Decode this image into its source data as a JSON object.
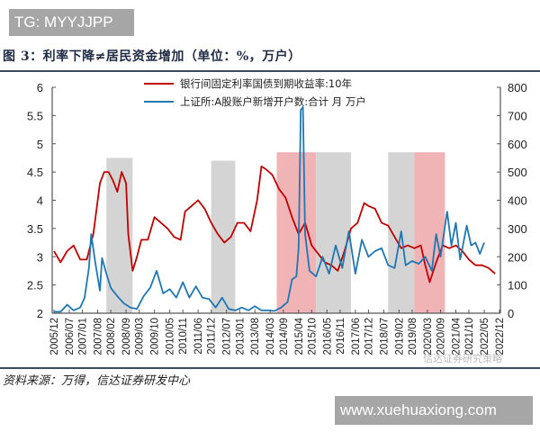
{
  "watermark_top": "TG: MYYJJPP",
  "watermark_bottom": "www.xuehuaxiong.com",
  "watermark_chart": "信达证券研究策略",
  "title": "图 3：利率下降≠居民资金增加（单位：%，万户）",
  "source": "资料来源：万得，信达证券研发中心",
  "chart_data": {
    "type": "line",
    "title": "图 3：利率下降≠居民资金增加（单位：%，万户）",
    "xlabel": "",
    "ylabel_left": "%",
    "ylabel_right": "万户",
    "ylim_left": [
      2,
      6
    ],
    "ylim_right": [
      0,
      800
    ],
    "yticks_left": [
      "2",
      "2.5",
      "3",
      "3.5",
      "4",
      "4.5",
      "5",
      "5.5",
      "6"
    ],
    "yticks_right": [
      "0",
      "100",
      "200",
      "300",
      "400",
      "500",
      "600",
      "700",
      "800"
    ],
    "x_tick_labels": [
      "2005/12",
      "2006/07",
      "2007/01",
      "2007/08",
      "2008/02",
      "2008/09",
      "2009/03",
      "2009/10",
      "2010/05",
      "2010/11",
      "2011/06",
      "2011/12",
      "2012/07",
      "2013/01",
      "2013/08",
      "2014/03",
      "2014/09",
      "2015/04",
      "2015/10",
      "2016/05",
      "2016/11",
      "2017/06",
      "2017/12",
      "2018/07",
      "2019/02",
      "2019/08",
      "2020/03",
      "2020/09",
      "2021/04",
      "2021/10",
      "2022/05",
      "2022/12"
    ],
    "grid": false,
    "legend_position": "top-center",
    "shaded_periods": [
      {
        "color": "gray",
        "start": "2007/12",
        "end": "2008/12",
        "top_left_value": 4.75
      },
      {
        "color": "gray",
        "start": "2011/12",
        "end": "2012/11",
        "top_left_value": 4.7
      },
      {
        "color": "pink",
        "start": "2014/06",
        "end": "2015/12",
        "top_left_value": 4.85
      },
      {
        "color": "gray",
        "start": "2015/12",
        "end": "2017/04",
        "top_left_value": 4.85
      },
      {
        "color": "gray",
        "start": "2018/09",
        "end": "2019/09",
        "top_left_value": 4.85
      },
      {
        "color": "pink",
        "start": "2019/09",
        "end": "2020/11",
        "top_left_value": 4.85
      }
    ],
    "series": [
      {
        "name": "银行间固定利率国债到期收益率:10年",
        "axis": "left",
        "color": "#c00000",
        "x": [
          "2005/12",
          "2006/03",
          "2006/06",
          "2006/09",
          "2006/12",
          "2007/03",
          "2007/06",
          "2007/09",
          "2007/11",
          "2008/01",
          "2008/03",
          "2008/05",
          "2008/07",
          "2008/09",
          "2008/10",
          "2008/12",
          "2009/02",
          "2009/04",
          "2009/07",
          "2009/10",
          "2010/01",
          "2010/04",
          "2010/07",
          "2010/10",
          "2010/12",
          "2011/03",
          "2011/06",
          "2011/09",
          "2011/12",
          "2012/03",
          "2012/06",
          "2012/09",
          "2012/12",
          "2013/03",
          "2013/06",
          "2013/09",
          "2013/11",
          "2014/01",
          "2014/04",
          "2014/07",
          "2014/10",
          "2015/01",
          "2015/04",
          "2015/07",
          "2015/10",
          "2016/01",
          "2016/04",
          "2016/07",
          "2016/10",
          "2017/01",
          "2017/04",
          "2017/07",
          "2017/10",
          "2017/12",
          "2018/03",
          "2018/06",
          "2018/09",
          "2018/12",
          "2019/03",
          "2019/06",
          "2019/09",
          "2019/12",
          "2020/02",
          "2020/04",
          "2020/07",
          "2020/10",
          "2021/01",
          "2021/04",
          "2021/07",
          "2021/10",
          "2022/01",
          "2022/04",
          "2022/07",
          "2022/10"
        ],
        "values": [
          3.1,
          2.9,
          3.1,
          3.2,
          2.95,
          2.95,
          3.4,
          4.3,
          4.5,
          4.5,
          4.35,
          4.15,
          4.5,
          4.3,
          3.4,
          2.75,
          3.0,
          3.3,
          3.3,
          3.7,
          3.6,
          3.5,
          3.35,
          3.3,
          3.8,
          3.9,
          4.0,
          3.85,
          3.6,
          3.4,
          3.25,
          3.35,
          3.6,
          3.6,
          3.45,
          4.0,
          4.6,
          4.55,
          4.45,
          4.2,
          4.05,
          3.7,
          3.4,
          3.6,
          3.2,
          3.05,
          2.9,
          2.85,
          2.75,
          3.1,
          3.5,
          3.6,
          3.95,
          3.9,
          3.85,
          3.6,
          3.55,
          3.35,
          3.15,
          3.2,
          3.15,
          3.2,
          2.85,
          2.55,
          2.9,
          3.2,
          3.15,
          3.2,
          3.1,
          2.95,
          2.85,
          2.85,
          2.8,
          2.7
        ]
      },
      {
        "name": "上证所:A股账户新增开户数:合计 月 万户",
        "axis": "right",
        "color": "#1f77b4",
        "x": [
          "2005/12",
          "2006/03",
          "2006/06",
          "2006/09",
          "2006/12",
          "2007/02",
          "2007/04",
          "2007/05",
          "2007/07",
          "2007/09",
          "2007/10",
          "2007/12",
          "2008/02",
          "2008/05",
          "2008/08",
          "2008/11",
          "2009/02",
          "2009/05",
          "2009/08",
          "2009/11",
          "2010/02",
          "2010/05",
          "2010/08",
          "2010/11",
          "2011/02",
          "2011/05",
          "2011/08",
          "2011/11",
          "2012/02",
          "2012/05",
          "2012/08",
          "2012/11",
          "2013/02",
          "2013/05",
          "2013/08",
          "2013/11",
          "2014/02",
          "2014/05",
          "2014/08",
          "2014/11",
          "2015/01",
          "2015/03",
          "2015/04",
          "2015/05",
          "2015/06",
          "2015/07",
          "2015/09",
          "2015/12",
          "2016/03",
          "2016/06",
          "2016/09",
          "2016/12",
          "2017/03",
          "2017/06",
          "2017/09",
          "2017/12",
          "2018/03",
          "2018/06",
          "2018/09",
          "2018/12",
          "2019/03",
          "2019/05",
          "2019/08",
          "2019/11",
          "2020/02",
          "2020/05",
          "2020/07",
          "2020/09",
          "2020/12",
          "2021/02",
          "2021/04",
          "2021/06",
          "2021/09",
          "2021/11",
          "2022/01",
          "2022/03",
          "2022/05"
        ],
        "values": [
          5,
          5,
          30,
          10,
          20,
          55,
          160,
          280,
          175,
          80,
          195,
          140,
          90,
          60,
          35,
          20,
          15,
          60,
          90,
          150,
          70,
          85,
          55,
          110,
          55,
          95,
          55,
          50,
          20,
          55,
          15,
          10,
          20,
          10,
          25,
          10,
          10,
          8,
          20,
          40,
          120,
          130,
          230,
          720,
          730,
          280,
          150,
          130,
          200,
          140,
          240,
          160,
          290,
          140,
          260,
          200,
          220,
          230,
          170,
          160,
          290,
          170,
          185,
          175,
          200,
          150,
          280,
          200,
          360,
          240,
          320,
          190,
          310,
          240,
          250,
          210,
          250
        ]
      }
    ]
  }
}
